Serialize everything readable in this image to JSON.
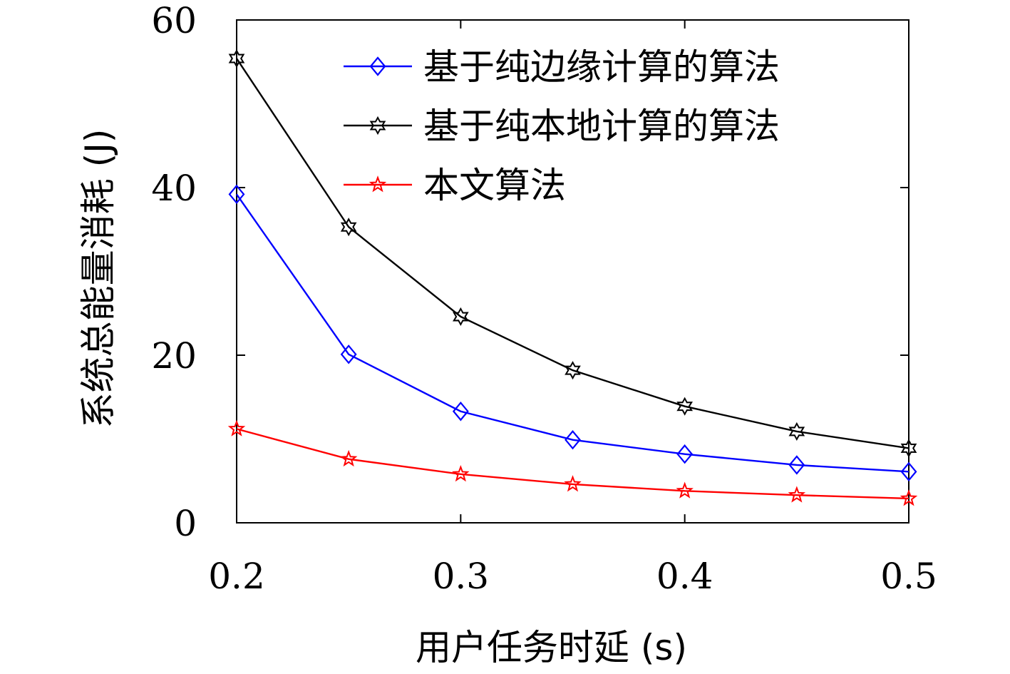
{
  "chart_data": {
    "type": "line",
    "title": "",
    "xlabel": "用户任务时延 (s)",
    "ylabel": "系统总能量消耗 (J)",
    "xlim": [
      0.2,
      0.5
    ],
    "ylim": [
      0,
      60
    ],
    "xticks": [
      "0.2",
      "0.3",
      "0.4",
      "0.5"
    ],
    "yticks": [
      "0",
      "20",
      "40",
      "60"
    ],
    "grid": false,
    "legend_position": "top-right",
    "x": [
      0.2,
      0.25,
      0.3,
      0.35,
      0.4,
      0.45,
      0.5
    ],
    "series": [
      {
        "name": "基于纯边缘计算的算法",
        "color": "#0000ff",
        "marker": "diamond",
        "values": [
          39.2,
          20.1,
          13.3,
          9.9,
          8.2,
          6.9,
          6.1
        ]
      },
      {
        "name": "基于纯本地计算的算法",
        "color": "#000000",
        "marker": "hexagram",
        "values": [
          55.4,
          35.3,
          24.6,
          18.2,
          13.9,
          10.9,
          8.9
        ]
      },
      {
        "name": "本文算法",
        "color": "#ff0000",
        "marker": "pentagram",
        "values": [
          11.2,
          7.6,
          5.8,
          4.6,
          3.8,
          3.3,
          2.9
        ]
      }
    ]
  }
}
